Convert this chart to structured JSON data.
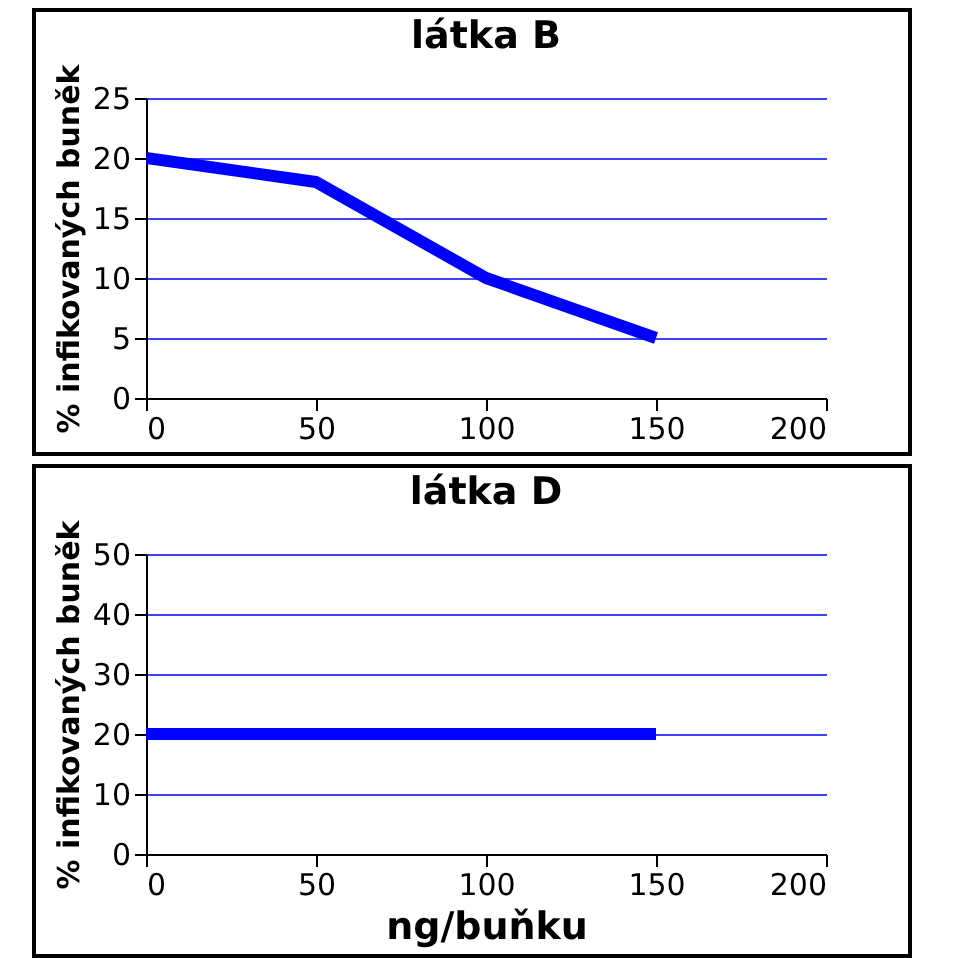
{
  "chart_data": [
    {
      "type": "line",
      "title": "látka B",
      "ylabel": "% infikovaných buněk",
      "x": [
        0,
        50,
        100,
        150
      ],
      "series": [
        {
          "color": "#0000ff",
          "values": [
            20,
            18,
            10,
            5
          ]
        }
      ],
      "xlim": [
        0,
        200
      ],
      "ylim": [
        0,
        25
      ],
      "xticks": [
        0,
        50,
        100,
        150,
        200
      ],
      "yticks": [
        0,
        5,
        10,
        15,
        20,
        25
      ],
      "grid": "y"
    },
    {
      "type": "line",
      "title": "látka D",
      "ylabel": "% infikovaných buněk",
      "xlabel": "ng/buňku",
      "x": [
        0,
        50,
        100,
        150
      ],
      "series": [
        {
          "color": "#0000ff",
          "values": [
            20,
            20,
            20,
            20
          ]
        }
      ],
      "xlim": [
        0,
        200
      ],
      "ylim": [
        0,
        50
      ],
      "xticks": [
        0,
        50,
        100,
        150,
        200
      ],
      "yticks": [
        0,
        10,
        20,
        30,
        40,
        50
      ],
      "grid": "y"
    }
  ]
}
